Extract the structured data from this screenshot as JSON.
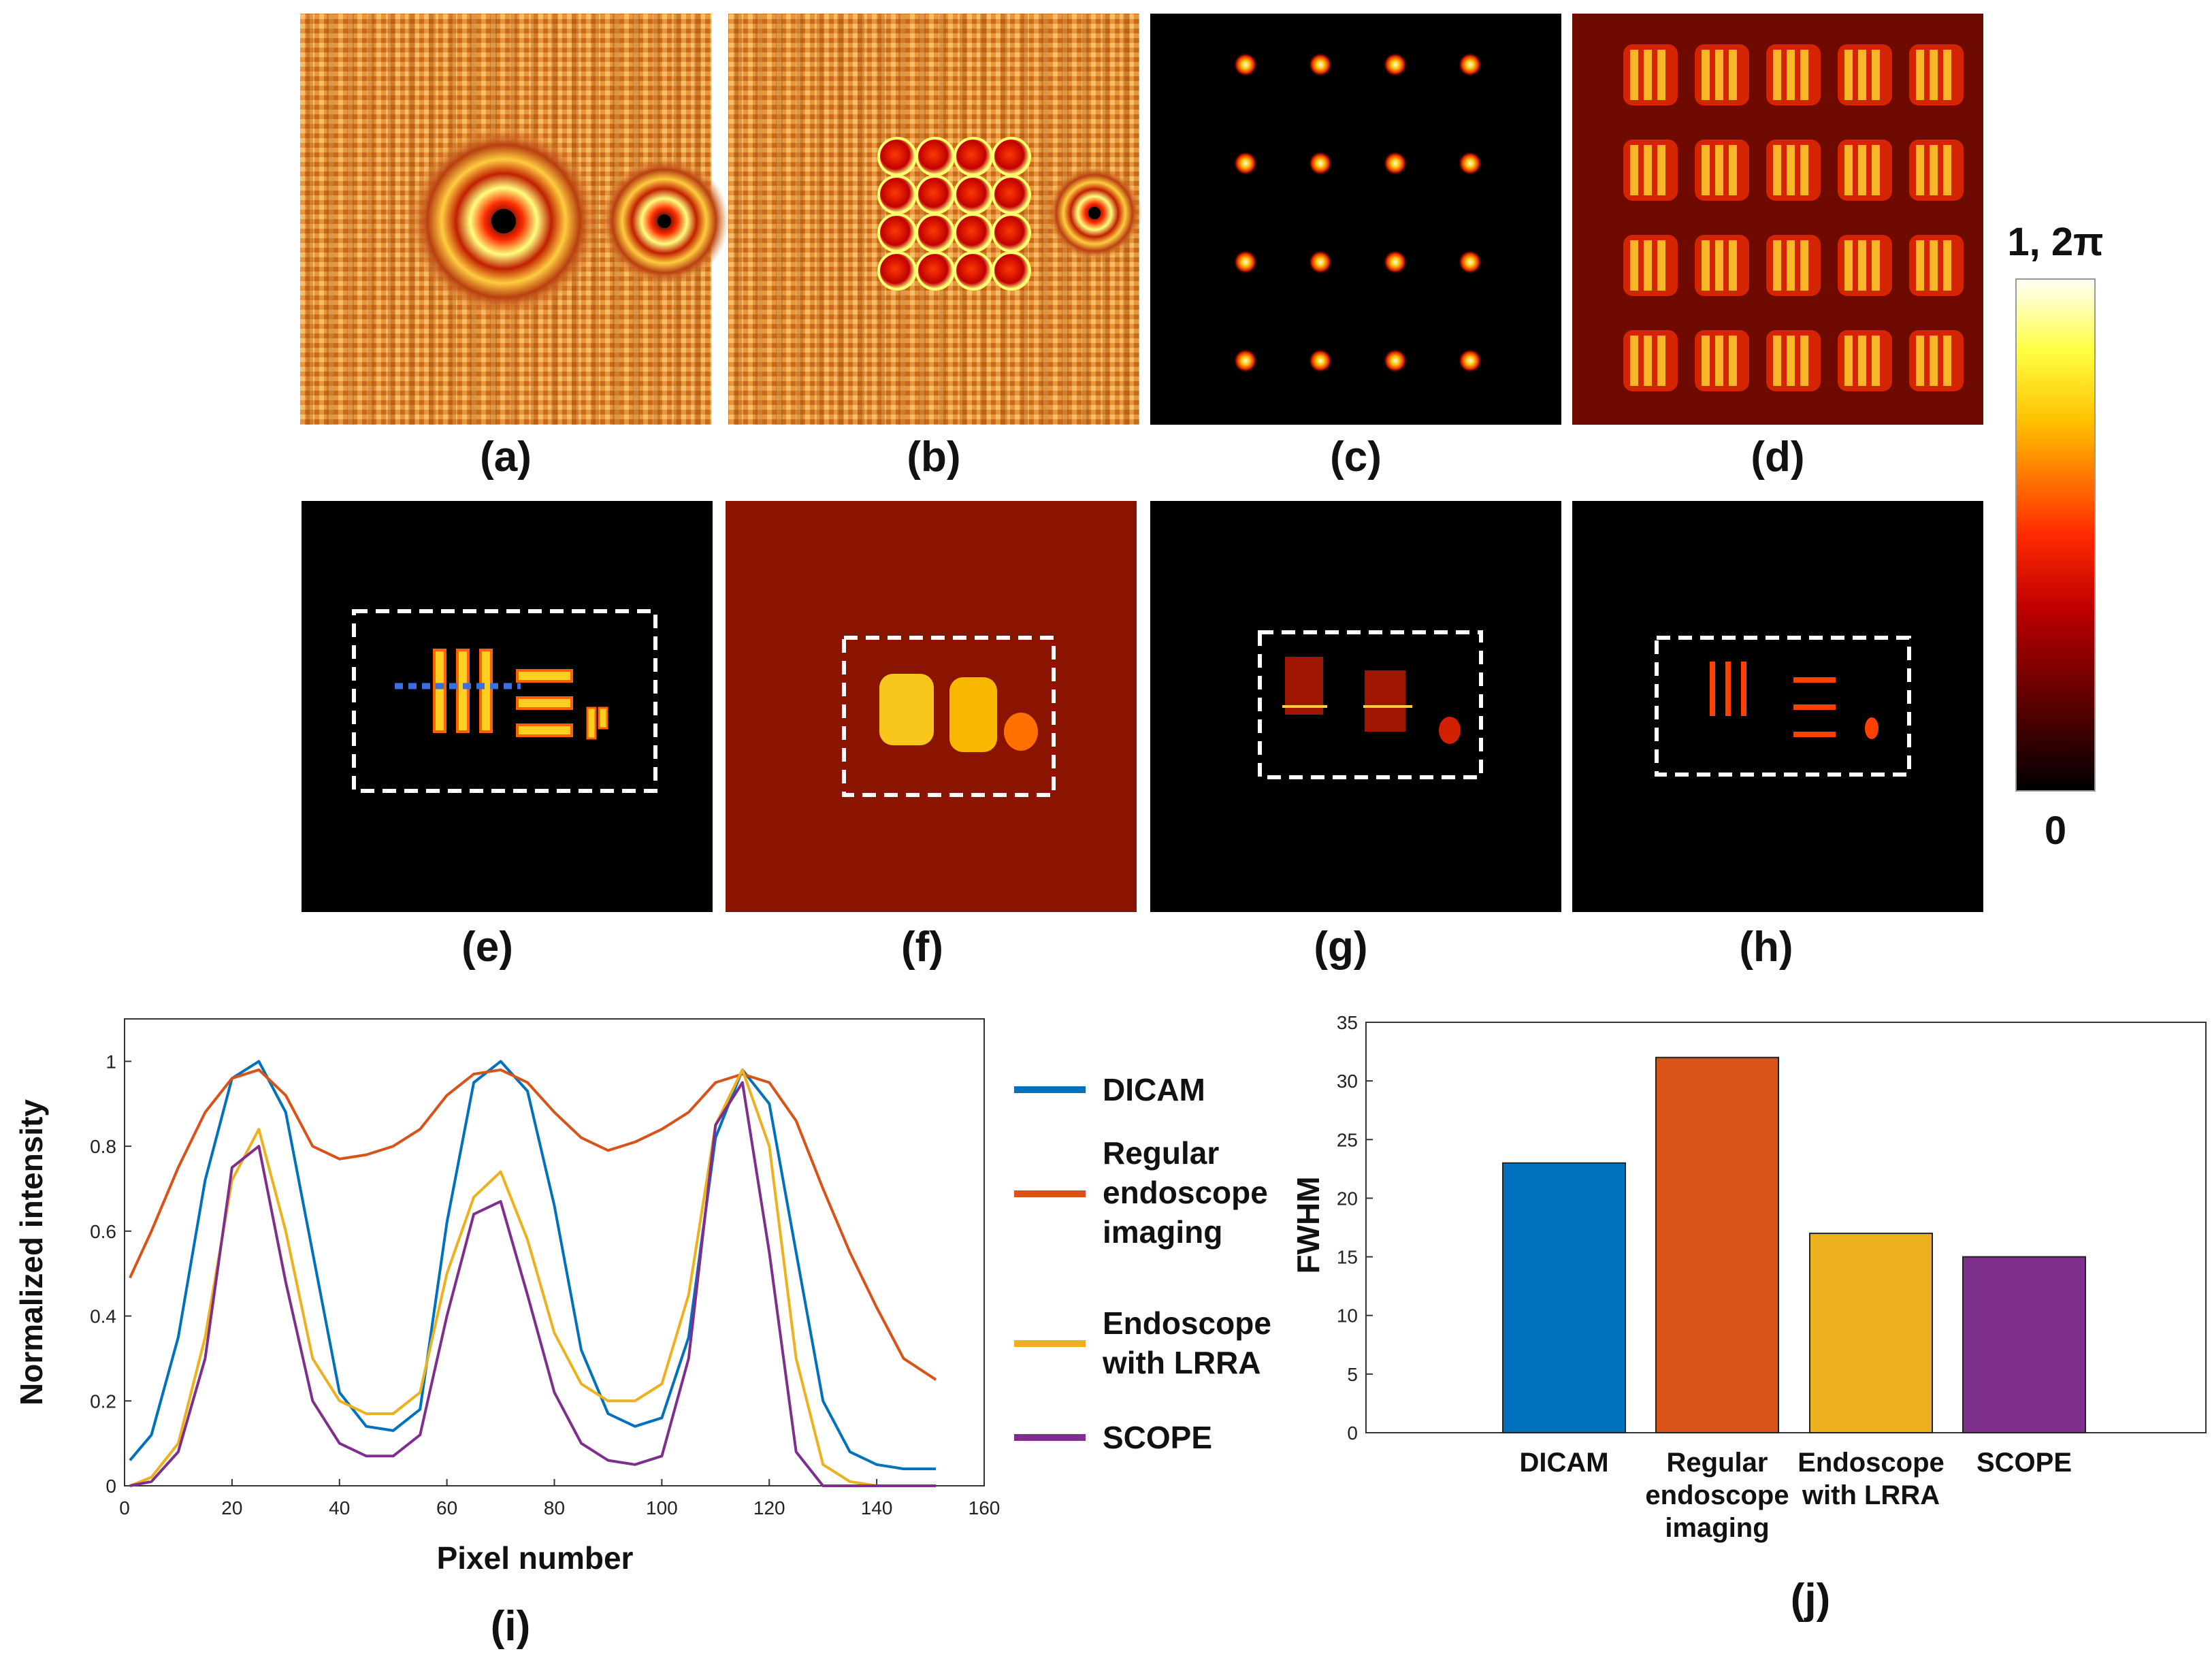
{
  "panels": {
    "a": "(a)",
    "b": "(b)",
    "c": "(c)",
    "d": "(d)",
    "e": "(e)",
    "f": "(f)",
    "g": "(g)",
    "h": "(h)",
    "i": "(i)",
    "j": "(j)"
  },
  "colorbar": {
    "top_label": "1, 2π",
    "bottom_label": "0",
    "colormap": "hot"
  },
  "colors": {
    "dicam": "#0072BD",
    "regular": "#D95319",
    "lrra": "#EDB120",
    "scope": "#7E2F8E",
    "roi_box": "#ffffff",
    "line_marker": "#3b6fe0"
  },
  "chart_data": [
    {
      "type": "line",
      "panel": "(i)",
      "xlabel": "Pixel number",
      "ylabel": "Normalized intensity",
      "xlim": [
        0,
        160
      ],
      "ylim": [
        0,
        1.1
      ],
      "xticks": [
        0,
        20,
        40,
        60,
        80,
        100,
        120,
        140,
        160
      ],
      "yticks": [
        0,
        0.2,
        0.4,
        0.6,
        0.8,
        1
      ],
      "legend_position": "right-outside",
      "series": [
        {
          "name": "DICAM",
          "color": "#0072BD",
          "x": [
            1,
            5,
            10,
            15,
            20,
            25,
            30,
            35,
            40,
            45,
            50,
            55,
            60,
            65,
            70,
            75,
            80,
            85,
            90,
            95,
            100,
            105,
            110,
            115,
            120,
            125,
            130,
            135,
            140,
            145,
            151
          ],
          "y": [
            0.06,
            0.12,
            0.35,
            0.72,
            0.96,
            1.0,
            0.88,
            0.55,
            0.22,
            0.14,
            0.13,
            0.18,
            0.62,
            0.95,
            1.0,
            0.93,
            0.66,
            0.32,
            0.17,
            0.14,
            0.16,
            0.35,
            0.82,
            0.98,
            0.9,
            0.55,
            0.2,
            0.08,
            0.05,
            0.04,
            0.04
          ]
        },
        {
          "name": "Regular endoscope imaging",
          "color": "#D95319",
          "x": [
            1,
            5,
            10,
            15,
            20,
            25,
            30,
            35,
            40,
            45,
            50,
            55,
            60,
            65,
            70,
            75,
            80,
            85,
            90,
            95,
            100,
            105,
            110,
            115,
            120,
            125,
            130,
            135,
            140,
            145,
            151
          ],
          "y": [
            0.49,
            0.6,
            0.75,
            0.88,
            0.96,
            0.98,
            0.92,
            0.8,
            0.77,
            0.78,
            0.8,
            0.84,
            0.92,
            0.97,
            0.98,
            0.95,
            0.88,
            0.82,
            0.79,
            0.81,
            0.84,
            0.88,
            0.95,
            0.97,
            0.95,
            0.86,
            0.7,
            0.55,
            0.42,
            0.3,
            0.25
          ]
        },
        {
          "name": "Endoscope with LRRA",
          "color": "#EDB120",
          "x": [
            1,
            5,
            10,
            15,
            20,
            25,
            30,
            35,
            40,
            45,
            50,
            55,
            60,
            65,
            70,
            75,
            80,
            85,
            90,
            95,
            100,
            105,
            110,
            115,
            120,
            125,
            130,
            135,
            140,
            145,
            151
          ],
          "y": [
            0.0,
            0.02,
            0.1,
            0.35,
            0.72,
            0.84,
            0.6,
            0.3,
            0.2,
            0.17,
            0.17,
            0.22,
            0.5,
            0.68,
            0.74,
            0.58,
            0.36,
            0.24,
            0.2,
            0.2,
            0.24,
            0.45,
            0.85,
            0.98,
            0.8,
            0.3,
            0.05,
            0.01,
            0.0,
            0.0,
            0.0
          ]
        },
        {
          "name": "SCOPE",
          "color": "#7E2F8E",
          "x": [
            1,
            5,
            10,
            15,
            20,
            25,
            30,
            35,
            40,
            45,
            50,
            55,
            60,
            65,
            70,
            75,
            80,
            85,
            90,
            95,
            100,
            105,
            110,
            115,
            120,
            125,
            130,
            135,
            140,
            145,
            151
          ],
          "y": [
            0.0,
            0.01,
            0.08,
            0.3,
            0.75,
            0.8,
            0.48,
            0.2,
            0.1,
            0.07,
            0.07,
            0.12,
            0.4,
            0.64,
            0.67,
            0.45,
            0.22,
            0.1,
            0.06,
            0.05,
            0.07,
            0.3,
            0.85,
            0.95,
            0.55,
            0.08,
            0.0,
            0.0,
            0.0,
            0.0,
            0.0
          ]
        }
      ]
    },
    {
      "type": "bar",
      "panel": "(j)",
      "ylabel": "FWHM",
      "ylim": [
        0,
        35
      ],
      "yticks": [
        0,
        5,
        10,
        15,
        20,
        25,
        30,
        35
      ],
      "categories": [
        [
          "DICAM"
        ],
        [
          "Regular",
          "endoscope",
          "imaging"
        ],
        [
          "Endoscope",
          "with LRRA"
        ],
        [
          "SCOPE"
        ]
      ],
      "values": [
        23,
        32,
        17,
        15
      ],
      "colors": [
        "#0072BD",
        "#D95319",
        "#EDB120",
        "#7E2F8E"
      ]
    }
  ]
}
